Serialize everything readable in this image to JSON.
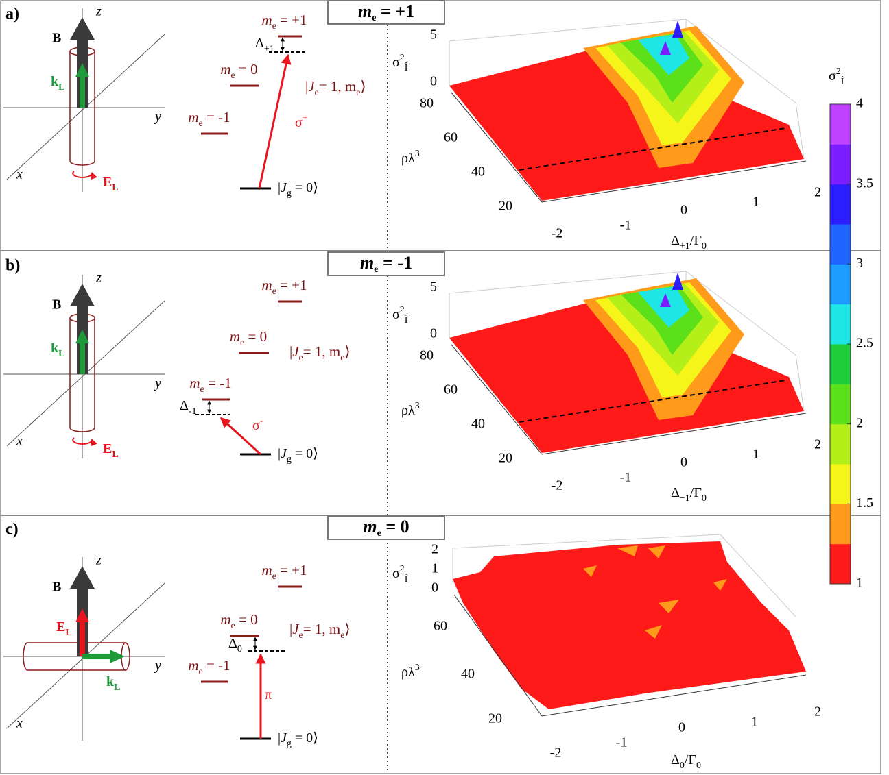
{
  "panels": [
    {
      "label": "a)",
      "title": [
        {
          "ital": "m"
        },
        {
          "sub": "e"
        },
        {
          "text": " = +1"
        }
      ],
      "axes": {
        "z": "z",
        "y": "y",
        "x": "x"
      },
      "field": "B",
      "k": [
        {
          "text": "k"
        },
        {
          "sub": "L"
        }
      ],
      "E": [
        {
          "text": "E"
        },
        {
          "sub": "L"
        }
      ],
      "levels": [
        [
          {
            "ital": "m"
          },
          {
            "sub": "e"
          },
          {
            "text": " = +1"
          }
        ],
        [
          {
            "ital": "m"
          },
          {
            "sub": "e"
          },
          {
            "text": " = 0"
          }
        ],
        [
          {
            "ital": "m"
          },
          {
            "sub": "e"
          },
          {
            "text": " = -1"
          }
        ]
      ],
      "ground": [
        {
          "text": "|"
        },
        {
          "ital": "J"
        },
        {
          "sub": "g"
        },
        {
          "text": " = 0⟩"
        }
      ],
      "excited": [
        {
          "text": "|"
        },
        {
          "ital": "J"
        },
        {
          "sub": "e"
        },
        {
          "text": "= 1, m"
        },
        {
          "sub": "e"
        },
        {
          "text": "⟩"
        }
      ],
      "detuning": [
        {
          "text": "Δ"
        },
        {
          "sub": "+1"
        }
      ],
      "transition": [
        {
          "text": "σ"
        },
        {
          "sup": "+"
        }
      ],
      "plot": {
        "zlabel": [
          {
            "text": "σ"
          },
          {
            "sup": "2"
          },
          {
            "sub": "Î"
          }
        ],
        "zticks": [
          5,
          0
        ],
        "ylabel": [
          {
            "text": "ρλ"
          },
          {
            "sup": "3"
          }
        ],
        "yticks": [
          80,
          60,
          40,
          20
        ],
        "xticks": [
          -2,
          -1,
          0,
          1,
          2
        ],
        "xlabel": [
          {
            "text": "Δ"
          },
          {
            "sub": "+1"
          },
          {
            "text": "/Γ"
          },
          {
            "sub": "0"
          }
        ]
      }
    },
    {
      "label": "b)",
      "title": [
        {
          "ital": "m"
        },
        {
          "sub": "e"
        },
        {
          "text": " = -1"
        }
      ],
      "axes": {
        "z": "z",
        "y": "y",
        "x": "x"
      },
      "field": "B",
      "k": [
        {
          "text": "k"
        },
        {
          "sub": "L"
        }
      ],
      "E": [
        {
          "text": "E"
        },
        {
          "sub": "L"
        }
      ],
      "levels": [
        [
          {
            "ital": "m"
          },
          {
            "sub": "e"
          },
          {
            "text": " = +1"
          }
        ],
        [
          {
            "ital": "m"
          },
          {
            "sub": "e"
          },
          {
            "text": " = 0"
          }
        ],
        [
          {
            "ital": "m"
          },
          {
            "sub": "e"
          },
          {
            "text": " = -1"
          }
        ]
      ],
      "ground": [
        {
          "text": "|"
        },
        {
          "ital": "J"
        },
        {
          "sub": "g"
        },
        {
          "text": " = 0⟩"
        }
      ],
      "excited": [
        {
          "text": "|"
        },
        {
          "ital": "J"
        },
        {
          "sub": "e"
        },
        {
          "text": "= 1, m"
        },
        {
          "sub": "e"
        },
        {
          "text": "⟩"
        }
      ],
      "detuning": [
        {
          "text": "Δ"
        },
        {
          "sub": "-1"
        }
      ],
      "transition": [
        {
          "text": "σ"
        },
        {
          "sup": "-"
        }
      ],
      "plot": {
        "zlabel": [
          {
            "text": "σ"
          },
          {
            "sup": "2"
          },
          {
            "sub": "Î"
          }
        ],
        "zticks": [
          5,
          0
        ],
        "ylabel": [
          {
            "text": "ρλ"
          },
          {
            "sup": "3"
          }
        ],
        "yticks": [
          80,
          60,
          40,
          20
        ],
        "xticks": [
          -2,
          -1,
          0,
          1,
          2
        ],
        "xlabel": [
          {
            "text": "Δ"
          },
          {
            "sub": "−1"
          },
          {
            "text": "/Γ"
          },
          {
            "sub": "0"
          }
        ]
      }
    },
    {
      "label": "c)",
      "title": [
        {
          "ital": "m"
        },
        {
          "sub": "e"
        },
        {
          "text": " = 0"
        }
      ],
      "axes": {
        "z": "z",
        "y": "y",
        "x": "x"
      },
      "field": "B",
      "k": [
        {
          "text": "k"
        },
        {
          "sub": "L"
        }
      ],
      "E": [
        {
          "text": "E"
        },
        {
          "sub": "L"
        }
      ],
      "levels": [
        [
          {
            "ital": "m"
          },
          {
            "sub": "e"
          },
          {
            "text": " = +1"
          }
        ],
        [
          {
            "ital": "m"
          },
          {
            "sub": "e"
          },
          {
            "text": " = 0"
          }
        ],
        [
          {
            "ital": "m"
          },
          {
            "sub": "e"
          },
          {
            "text": " = -1"
          }
        ]
      ],
      "ground": [
        {
          "text": "|"
        },
        {
          "ital": "J"
        },
        {
          "sub": "g"
        },
        {
          "text": " = 0⟩"
        }
      ],
      "excited": [
        {
          "text": "|"
        },
        {
          "ital": "J"
        },
        {
          "sub": "e"
        },
        {
          "text": "= 1, m"
        },
        {
          "sub": "e"
        },
        {
          "text": "⟩"
        }
      ],
      "detuning": [
        {
          "text": "Δ"
        },
        {
          "sub": "0"
        }
      ],
      "transition": [
        {
          "text": "π"
        }
      ],
      "plot": {
        "zlabel": [
          {
            "text": "σ"
          },
          {
            "sup": "2"
          },
          {
            "sub": "Î"
          }
        ],
        "zticks": [
          2,
          1,
          0
        ],
        "ylabel": [
          {
            "text": "ρλ"
          },
          {
            "sup": "3"
          }
        ],
        "yticks": [
          60,
          40,
          20
        ],
        "xticks": [
          -2,
          -1,
          0,
          1,
          2
        ],
        "xlabel": [
          {
            "text": "Δ"
          },
          {
            "sub": "0"
          },
          {
            "text": "/Γ"
          },
          {
            "sub": "0"
          }
        ]
      }
    }
  ],
  "colorbar": {
    "label": [
      {
        "text": "σ"
      },
      {
        "sup": "2"
      },
      {
        "sub": "Î"
      }
    ],
    "lim": [
      1,
      4
    ],
    "ticks": [
      1,
      1.5,
      2,
      2.5,
      3,
      3.5,
      4
    ],
    "colors": [
      "#ff1a1a",
      "#ff9a1a",
      "#f5f51a",
      "#b4ef1a",
      "#5ce01a",
      "#1ecc3c",
      "#1ee6e6",
      "#1e9bff",
      "#1e64ff",
      "#2a1eff",
      "#7a1eff",
      "#c040ff"
    ]
  }
}
